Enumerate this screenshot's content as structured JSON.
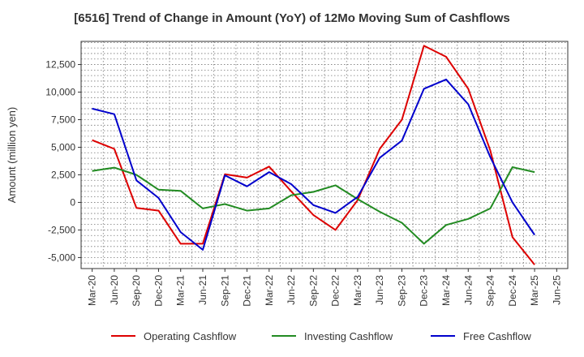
{
  "chart_data": {
    "type": "line",
    "title": "[6516]  Trend of Change in Amount (YoY) of 12Mo Moving Sum of Cashflows",
    "xlabel": "",
    "ylabel": "Amount (million yen)",
    "ylim": [
      -6000,
      14600
    ],
    "yticks": [
      -5000,
      -2500,
      0,
      2500,
      5000,
      7500,
      10000,
      12500
    ],
    "ytick_labels": [
      "-5,000",
      "-2,500",
      "0",
      "2,500",
      "5,000",
      "7,500",
      "10,000",
      "12,500"
    ],
    "categories": [
      "Mar-20",
      "Jun-20",
      "Sep-20",
      "Dec-20",
      "Mar-21",
      "Jun-21",
      "Sep-21",
      "Dec-21",
      "Mar-22",
      "Jun-22",
      "Sep-22",
      "Dec-22",
      "Mar-23",
      "Jun-23",
      "Sep-23",
      "Dec-23",
      "Mar-24",
      "Jun-24",
      "Sep-24",
      "Dec-24",
      "Mar-25",
      "Jun-25"
    ],
    "grid": true,
    "legend_position": "bottom",
    "series": [
      {
        "name": "Operating Cashflow",
        "color": "#dd0000",
        "values": [
          5650,
          4850,
          -500,
          -750,
          -3750,
          -3750,
          2550,
          2250,
          3250,
          1000,
          -1150,
          -2500,
          200,
          4850,
          7500,
          14200,
          13200,
          10300,
          4700,
          -3150,
          -5650,
          null
        ]
      },
      {
        "name": "Investing Cashflow",
        "color": "#228b22",
        "values": [
          2850,
          3150,
          2500,
          1150,
          1050,
          -550,
          -150,
          -750,
          -550,
          650,
          950,
          1550,
          300,
          -850,
          -1850,
          -3750,
          -2050,
          -1500,
          -550,
          3200,
          2750,
          null
        ]
      },
      {
        "name": "Free Cashflow",
        "color": "#0000cc",
        "values": [
          8500,
          8000,
          2000,
          400,
          -2700,
          -4300,
          2450,
          1450,
          2750,
          1650,
          -250,
          -950,
          500,
          4050,
          5600,
          10300,
          11150,
          8900,
          4100,
          0,
          -2950,
          null
        ]
      }
    ]
  }
}
